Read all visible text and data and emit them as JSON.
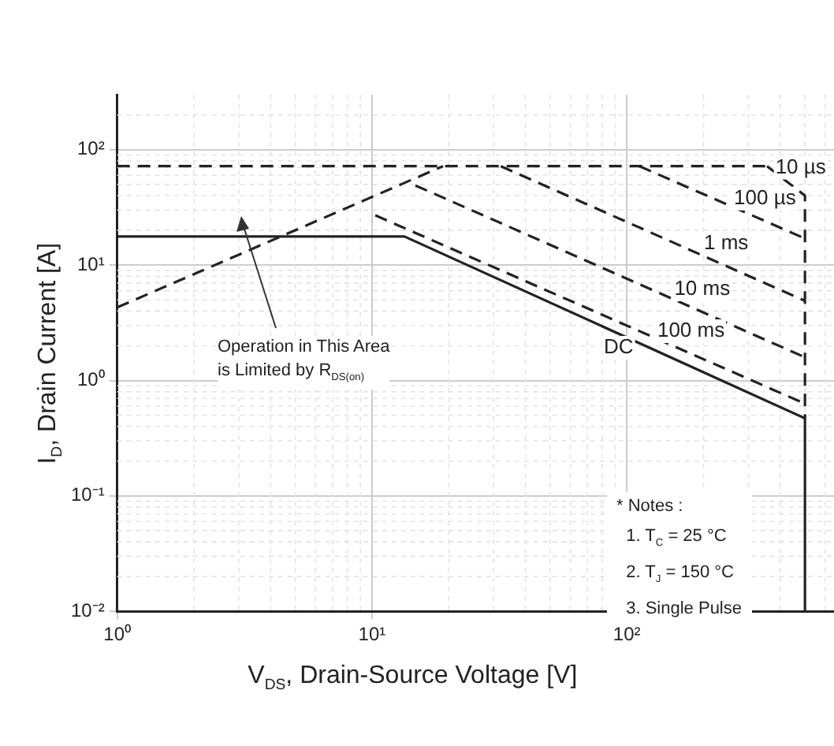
{
  "chart_data": {
    "type": "line",
    "xlabel": "V$_{DS}$, Drain-Source Voltage [V]",
    "ylabel": "I$_{D}$, Drain Current [A]",
    "log": "xy",
    "xlim": [
      1,
      650
    ],
    "ylim": [
      0.01,
      300
    ],
    "xticks": [
      {
        "value": 1,
        "label": "10⁰"
      },
      {
        "value": 10,
        "label": "10¹"
      },
      {
        "value": 100,
        "label": "10²"
      }
    ],
    "yticks": [
      {
        "value": 0.01,
        "label": "10⁻²"
      },
      {
        "value": 0.1,
        "label": "10⁻¹"
      },
      {
        "value": 1,
        "label": "10⁰"
      },
      {
        "value": 10,
        "label": "10¹"
      },
      {
        "value": 100,
        "label": "10²"
      }
    ],
    "grid": true,
    "legend": false,
    "marker": "none",
    "series": [
      {
        "color": "#222222",
        "line_style": "dashed",
        "x": [
          1,
          355
        ],
        "values": [
          72,
          72
        ]
      },
      {
        "color": "#222222",
        "line_style": "dashed",
        "x": [
          1,
          19
        ],
        "values": [
          4.3,
          72
        ]
      },
      {
        "name": "10 µs",
        "color": "#222222",
        "line_style": "dashed",
        "x": [
          355,
          500,
          500
        ],
        "values": [
          72,
          40,
          0.47
        ]
      },
      {
        "name": "100 µs",
        "color": "#222222",
        "line_style": "dashed",
        "x": [
          112,
          500
        ],
        "values": [
          72,
          17
        ]
      },
      {
        "name": "1 ms",
        "color": "#222222",
        "line_style": "dashed",
        "x": [
          32,
          500
        ],
        "values": [
          72,
          4.9
        ]
      },
      {
        "name": "10 ms",
        "color": "#222222",
        "line_style": "dashed",
        "x": [
          14.8,
          500
        ],
        "values": [
          49,
          1.59
        ]
      },
      {
        "name": "100 ms",
        "color": "#222222",
        "line_style": "dashed",
        "x": [
          10.3,
          500
        ],
        "values": [
          27,
          0.63
        ]
      },
      {
        "name": "DC",
        "color": "#222222",
        "line_style": "solid",
        "x": [
          1,
          13.4,
          500,
          500
        ],
        "values": [
          17.7,
          17.7,
          0.47,
          0.01
        ]
      }
    ],
    "annotations": [
      "Operation in This Area is Limited by R$_{DS(on)}$",
      "* Notes :",
      "1. T$_{C}$ = 25 °C",
      "2. T$_{J}$ = 150 °C",
      "3. Single Pulse"
    ]
  }
}
